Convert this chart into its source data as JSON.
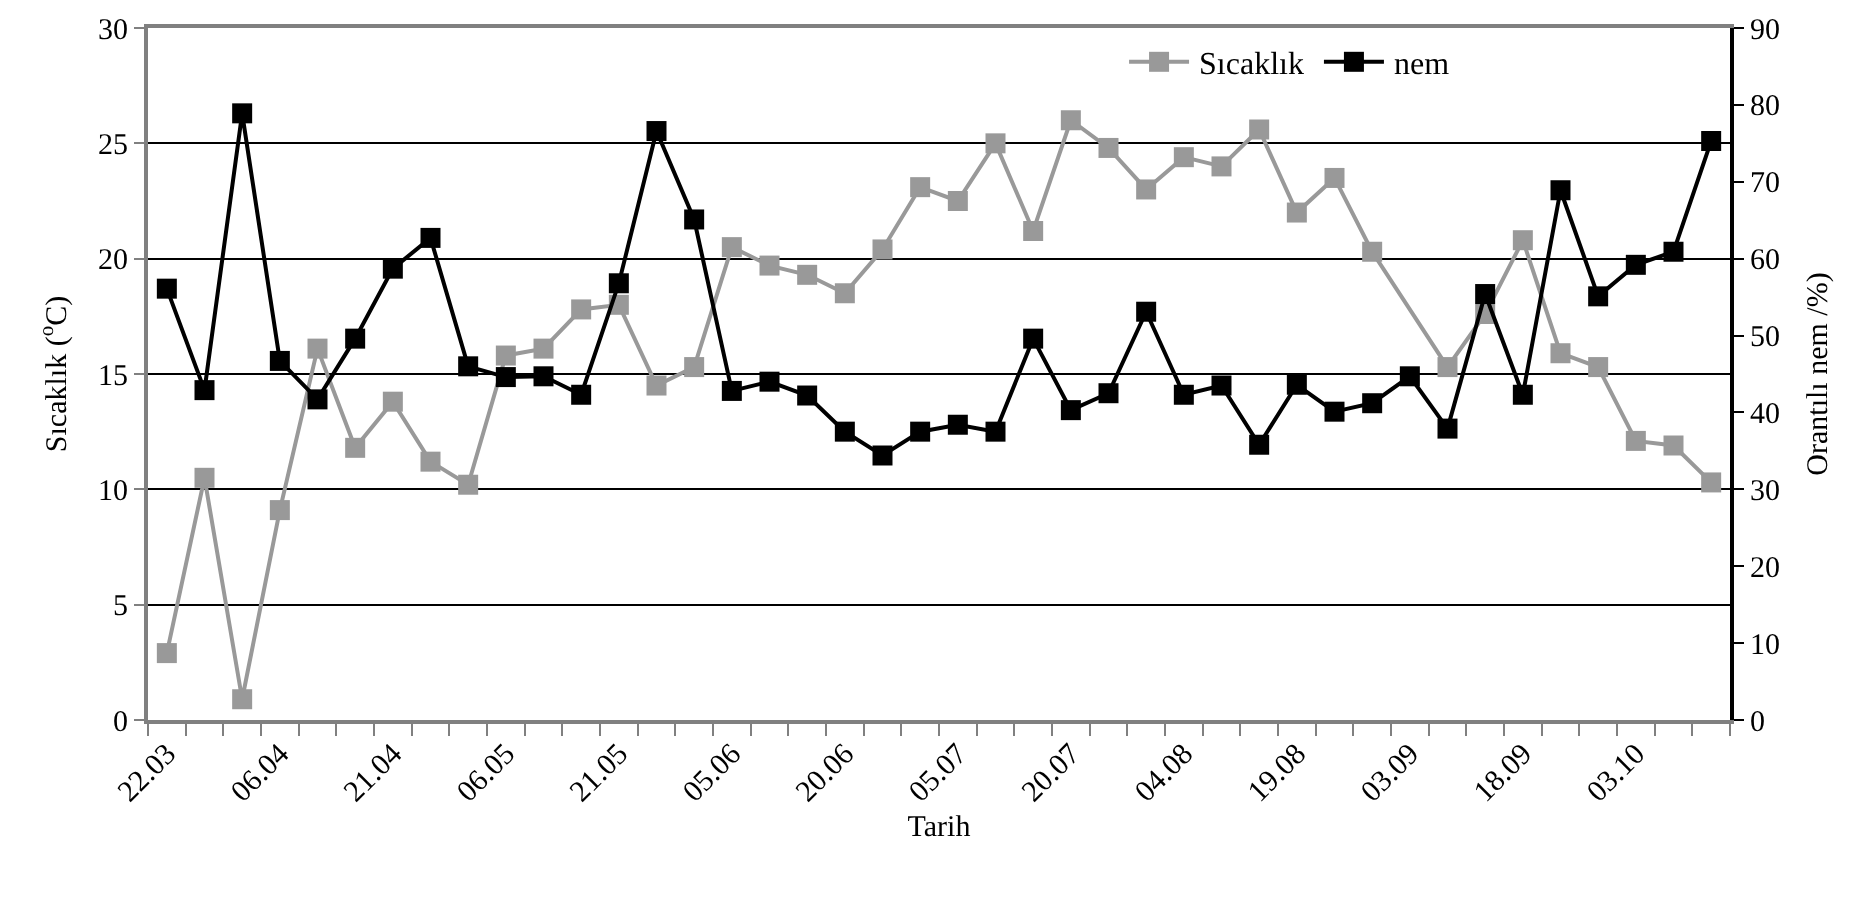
{
  "chart_data": {
    "type": "line",
    "xlabel": "Tarih",
    "ylabel": "Sıcaklık ($^{o}$C)",
    "y2label": "Orantılı nem /%)",
    "categories": [
      "22.03",
      null,
      null,
      "06.04",
      null,
      null,
      "21.04",
      null,
      null,
      "06.05",
      null,
      null,
      "21.05",
      null,
      null,
      "05.06",
      null,
      null,
      "20.06",
      null,
      null,
      "05.07",
      null,
      null,
      "20.07",
      null,
      null,
      "04.08",
      null,
      null,
      "19.08",
      null,
      null,
      "03.09",
      null,
      null,
      "18.09",
      null,
      null,
      "03.10",
      null,
      null
    ],
    "series": [
      {
        "name": "Sıcaklık",
        "color": "#999999",
        "values": [
          2.9,
          10.5,
          0.9,
          9.1,
          16.1,
          11.8,
          13.8,
          11.2,
          10.2,
          15.8,
          16.1,
          17.8,
          18.0,
          14.5,
          15.3,
          20.5,
          19.7,
          19.3,
          18.5,
          20.4,
          23.1,
          22.5,
          25.0,
          21.2,
          26.0,
          24.8,
          23.0,
          24.4,
          24.0,
          25.6,
          22.0,
          23.5,
          20.3,
          null,
          15.3,
          17.6,
          20.8,
          15.9,
          15.3,
          12.1,
          11.9,
          10.3
        ]
      },
      {
        "name": "nem",
        "color": "#000000",
        "axis": "y2",
        "values": [
          56.1,
          42.9,
          78.9,
          46.7,
          41.7,
          49.6,
          58.7,
          62.7,
          46.0,
          44.6,
          44.7,
          42.3,
          56.8,
          76.6,
          65.1,
          42.8,
          44.0,
          42.2,
          37.5,
          34.4,
          37.5,
          38.4,
          37.5,
          49.6,
          40.3,
          42.5,
          53.1,
          42.3,
          43.5,
          35.8,
          43.6,
          40.1,
          41.2,
          44.7,
          37.9,
          55.4,
          42.3,
          68.9,
          55.1,
          59.2,
          60.9,
          75.3
        ]
      }
    ],
    "ylim": [
      0,
      30
    ],
    "yticks": [
      0,
      5,
      10,
      15,
      20,
      25,
      30
    ],
    "y2lim": [
      0,
      90
    ],
    "y2ticks": [
      0,
      10,
      20,
      30,
      40,
      50,
      60,
      70,
      80,
      90
    ],
    "grid": "y",
    "legend": "top right",
    "marker": "square",
    "line_style": "solid"
  }
}
